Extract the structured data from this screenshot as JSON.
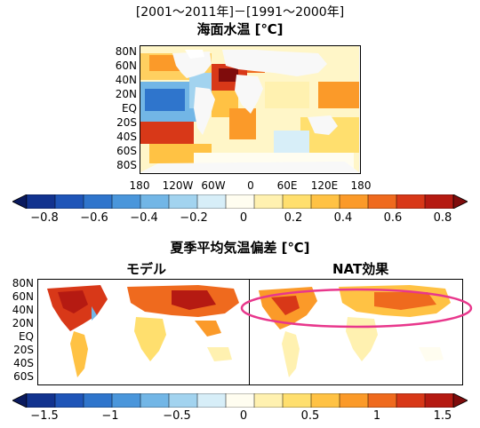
{
  "header": {
    "period": "[2001～2011年]－[1991～2000年]",
    "sst_title": "海面水温 [℃]",
    "temp_title": "夏季平均気温偏差 [℃]",
    "model_label": "モデル",
    "nat_label": "NAT効果"
  },
  "map_top": {
    "lat_labels": [
      "80N",
      "60N",
      "40N",
      "20N",
      "EQ",
      "20S",
      "40S",
      "60S",
      "80S"
    ],
    "lon_labels": [
      "180",
      "120W",
      "60W",
      "0",
      "60E",
      "120E",
      "180"
    ]
  },
  "colorbar_top": {
    "tick_labels": [
      "−0.8",
      "−0.6",
      "−0.4",
      "−0.2",
      "0",
      "0.2",
      "0.4",
      "0.6",
      "0.8"
    ],
    "colors": [
      "#0a1a5e",
      "#12338f",
      "#1f55b8",
      "#2f75cc",
      "#4a96db",
      "#72b6e6",
      "#a2d3ef",
      "#d7eef8",
      "#fffdf0",
      "#fff1b0",
      "#ffdf6e",
      "#ffc244",
      "#fb9a29",
      "#ef6a1e",
      "#d83818",
      "#b51a12",
      "#7f0c0c"
    ]
  },
  "map_bottom": {
    "lat_labels": [
      "80N",
      "60N",
      "40N",
      "20N",
      "EQ",
      "20S",
      "40S",
      "60S"
    ]
  },
  "colorbar_bottom": {
    "tick_labels": [
      "−1.5",
      "−1",
      "−0.5",
      "0",
      "0.5",
      "1",
      "1.5"
    ],
    "colors": [
      "#0a1a5e",
      "#12338f",
      "#1f55b8",
      "#2f75cc",
      "#4a96db",
      "#72b6e6",
      "#a2d3ef",
      "#d7eef8",
      "#fffdf0",
      "#fff1b0",
      "#ffdf6e",
      "#ffc244",
      "#fb9a29",
      "#ef6a1e",
      "#d83818",
      "#b51a12",
      "#7f0c0c"
    ]
  },
  "highlight": {
    "color": "#e8378c"
  }
}
